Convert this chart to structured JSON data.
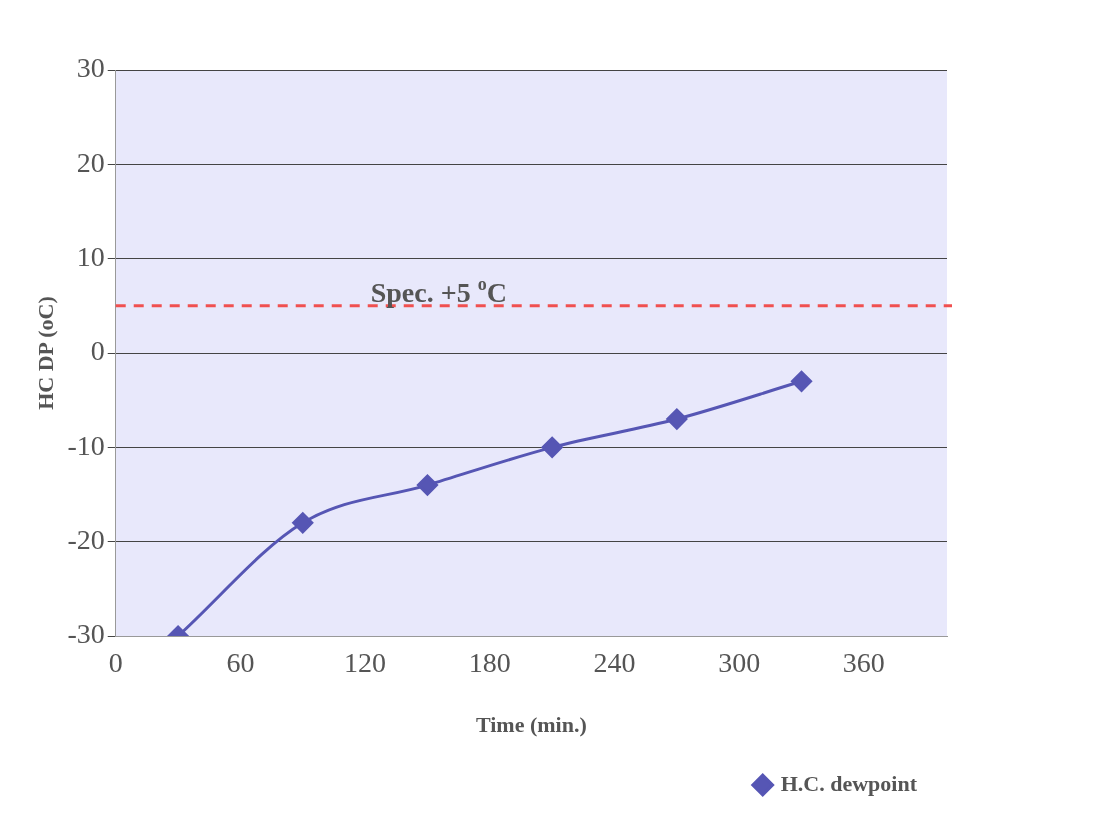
{
  "chart_data": {
    "type": "line",
    "xlabel": "Time (min.)",
    "ylabel": "HC DP (oC)",
    "x": [
      30,
      90,
      150,
      210,
      270,
      330
    ],
    "series": [
      {
        "name": "H.C. dewpoint",
        "color": "#5656b4",
        "values": [
          -30,
          -18,
          -14,
          -10,
          -7,
          -3
        ]
      }
    ],
    "xlim": [
      0,
      400
    ],
    "xticks": [
      0,
      60,
      120,
      180,
      240,
      300,
      360
    ],
    "ylim": [
      -30,
      30
    ],
    "yticks": [
      -30,
      -20,
      -10,
      0,
      10,
      20,
      30
    ],
    "grid": "y",
    "legend": "bottom right",
    "marker": "diamond",
    "line_style": "solid",
    "ref_lines": [
      {
        "axis": "y",
        "value": 5,
        "label": "Spec. +5 $^{o}$C",
        "color": "#f05050",
        "line_style": "dashed"
      }
    ]
  }
}
